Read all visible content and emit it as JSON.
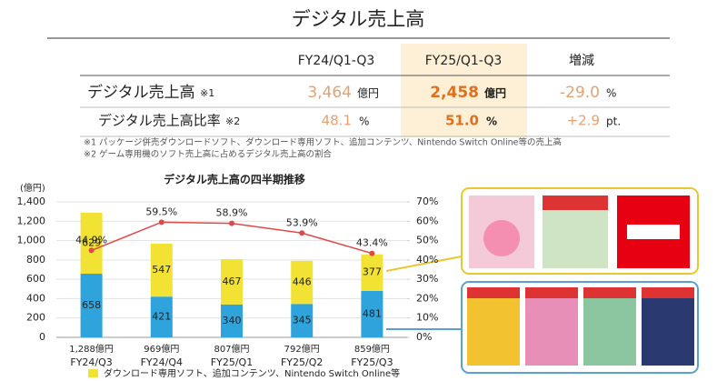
{
  "title": "デジタル売上高",
  "table": {
    "header": [
      "FY24/Q1-Q3",
      "FY25/Q1-Q3",
      "増減"
    ],
    "rows": [
      [
        "デジタル売上高",
        "※1",
        "3,464",
        "億円",
        "2,458",
        "億円",
        "-29.0",
        "%"
      ],
      [
        "デジタル売上高比率",
        "※2",
        "48.1",
        "%",
        "51.0",
        "%",
        "+2.9",
        "pt."
      ]
    ]
  },
  "notes": [
    "※1 パッケージ併売ダウンロードソフト、ダウンロード専用ソフト、追加コンテンツ、Nintendo Switch Online等の売上高",
    "※2 ゲーム専用機のソフト売上高に占めるデジタル売上高の割合"
  ],
  "chart_data": {
    "type": "bar",
    "title": "デジタル売上高の四半期推移",
    "y_label": "(億円)",
    "categories": [
      "FY24/Q3",
      "FY24/Q4",
      "FY25/Q1",
      "FY25/Q2",
      "FY25/Q3"
    ],
    "totals": {
      "values": [
        1288,
        969,
        807,
        792,
        859
      ],
      "value_labels": [
        "1,288億円",
        "969億円",
        "807億円",
        "792億円",
        "859億円"
      ]
    },
    "series": [
      {
        "color": "#2ea3dc",
        "values": [
          658,
          421,
          340,
          345,
          481
        ]
      },
      {
        "name": "ダウンロード専用ソフト、追加コンテンツ、Nintendo Switch Online等",
        "color": "#f2e233",
        "values": [
          629,
          547,
          467,
          446,
          377
        ]
      },
      {
        "type": "line",
        "axis": "y2",
        "color": "#e04848",
        "values": [
          44.9,
          59.5,
          58.9,
          53.9,
          43.4
        ],
        "value_labels": [
          "44.9%",
          "59.5%",
          "58.9%",
          "53.9%",
          "43.4%"
        ]
      }
    ],
    "ylim": [
      0,
      1400
    ],
    "yticks": [
      0,
      200,
      400,
      600,
      800,
      {
        "value": 1000,
        "label": "1,000"
      },
      {
        "value": 1200,
        "label": "1,200"
      },
      {
        "value": 1400,
        "label": "1,400"
      }
    ],
    "y2lim": [
      0,
      70
    ],
    "y2ticks": [
      {
        "value": 0,
        "label": "0%"
      },
      {
        "value": 10,
        "label": "10%"
      },
      {
        "value": 20,
        "label": "20%"
      },
      {
        "value": 30,
        "label": "30%"
      },
      {
        "value": 40,
        "label": "40%"
      },
      {
        "value": 50,
        "label": "50%"
      },
      {
        "value": 60,
        "label": "60%"
      },
      {
        "value": 70,
        "label": "70%"
      }
    ],
    "grid": true
  }
}
